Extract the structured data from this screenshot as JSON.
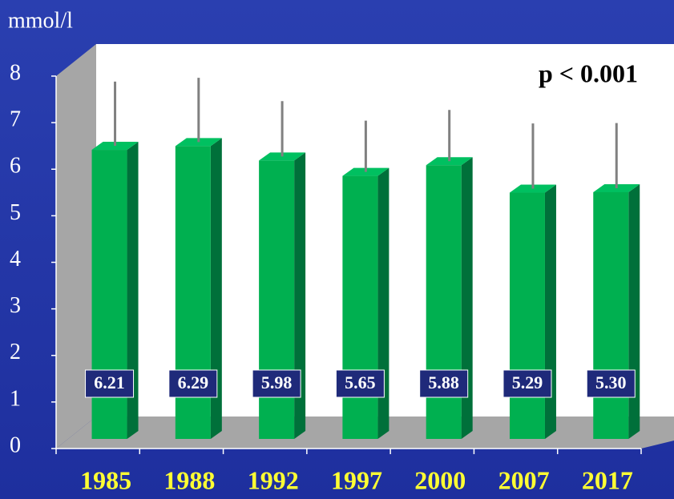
{
  "chart_data": {
    "type": "bar",
    "y_label": "mmol/l",
    "annotation": "p < 0.001",
    "categories": [
      "1985",
      "1988",
      "1992",
      "1997",
      "2000",
      "2007",
      "2017"
    ],
    "values": [
      6.21,
      6.29,
      5.98,
      5.65,
      5.88,
      5.29,
      5.3
    ],
    "value_labels": [
      "6.21",
      "6.29",
      "5.98",
      "5.65",
      "5.88",
      "5.29",
      "5.30"
    ],
    "errors": [
      1.38,
      1.38,
      1.19,
      1.1,
      1.1,
      1.4,
      1.4
    ],
    "color": "#00b050",
    "ylim": [
      0,
      8
    ],
    "yticks": [
      0,
      1,
      2,
      3,
      4,
      5,
      6,
      7,
      8
    ]
  }
}
